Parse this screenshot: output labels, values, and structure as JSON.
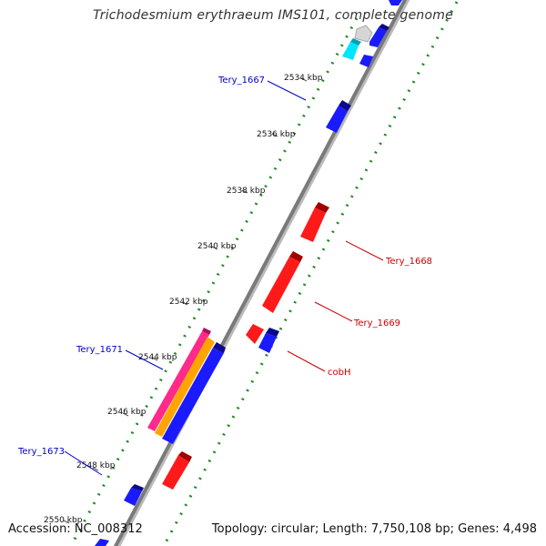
{
  "title": "Trichodesmium erythraeum IMS101, complete genome",
  "footer": {
    "accession": "Accession: NC_008312",
    "summary": "Topology: circular; Length: 7,750,108 bp; Genes: 4,498"
  },
  "ticks": [
    {
      "label": "2534 kbp"
    },
    {
      "label": "2536 kbp"
    },
    {
      "label": "2538 kbp"
    },
    {
      "label": "2540 kbp"
    },
    {
      "label": "2542 kbp"
    },
    {
      "label": "2544 kbp"
    },
    {
      "label": "2546 kbp"
    },
    {
      "label": "2548 kbp"
    },
    {
      "label": "2550 kbp"
    }
  ],
  "gene_labels": [
    {
      "name": "Tery_1667",
      "strand": "forward",
      "color": "#0000cc"
    },
    {
      "name": "Tery_1668",
      "strand": "reverse",
      "color": "#cc0000"
    },
    {
      "name": "Tery_1669",
      "strand": "reverse",
      "color": "#cc0000"
    },
    {
      "name": "cobH",
      "strand": "reverse",
      "color": "#cc0000"
    },
    {
      "name": "Tery_1671",
      "strand": "forward",
      "color": "#0000cc"
    },
    {
      "name": "Tery_1673",
      "strand": "forward",
      "color": "#0000cc"
    }
  ],
  "colors": {
    "forward": "#1a1aff",
    "reverse": "#ff1a1a",
    "backbone": "#888888",
    "gc_dots": "#1e8a1e",
    "cyan": "#00e5ff",
    "orange": "#ffa500",
    "pink": "#ff2a8a"
  }
}
